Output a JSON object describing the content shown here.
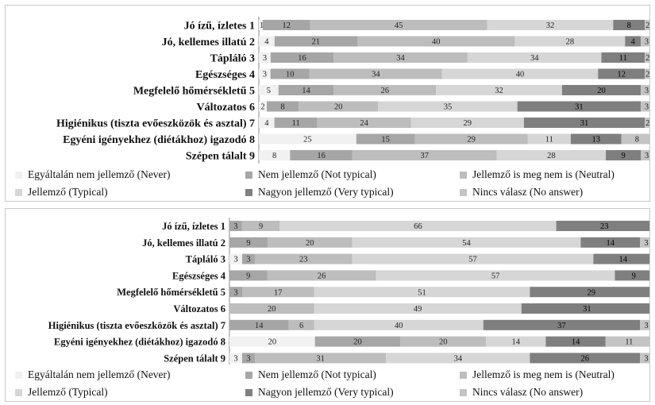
{
  "colors": {
    "never": "#f1f1f1",
    "not_typical": "#a6a6a6",
    "neutral": "#bdbdbd",
    "typical": "#d6d6d6",
    "very_typical": "#7f7f7f",
    "no_answer": "#c4c4c4",
    "panel_border": "#c8c8c8"
  },
  "chart_data": [
    {
      "type": "bar",
      "orientation": "horizontal",
      "stacked": true,
      "percent_stacked": true,
      "categories": [
        "Jó ízű, ízletes 1",
        "Jó, kellemes illatú 2",
        "Tápláló 3",
        "Egészséges 4",
        "Megfelelő hőmérsékletű 5",
        "Változatos 6",
        "Higiénikus (tiszta evőeszközök és asztal) 7",
        "Egyéni igényekhez (diétákhoz) igazodó 8",
        "Szépen tálalt 9"
      ],
      "series": [
        {
          "name": "Egyáltalán nem jellemző (Never)",
          "color_key": "never",
          "values": [
            1,
            4,
            3,
            3,
            5,
            2,
            4,
            25,
            8
          ]
        },
        {
          "name": "Nem jellemző (Not typical)",
          "color_key": "not_typical",
          "values": [
            12,
            21,
            16,
            10,
            14,
            8,
            11,
            15,
            16
          ]
        },
        {
          "name": "Jellemző is meg nem is (Neutral)",
          "color_key": "neutral",
          "values": [
            45,
            40,
            34,
            34,
            26,
            20,
            24,
            29,
            37
          ]
        },
        {
          "name": "Jellemző (Typical)",
          "color_key": "typical",
          "values": [
            32,
            28,
            34,
            40,
            32,
            35,
            29,
            11,
            28
          ]
        },
        {
          "name": "Nagyon jellemző (Very typical)",
          "color_key": "very_typical",
          "values": [
            8,
            4,
            11,
            12,
            20,
            31,
            31,
            13,
            9
          ]
        },
        {
          "name": "Nincs válasz (No answer)",
          "color_key": "no_answer",
          "values": [
            2,
            3,
            2,
            2,
            3,
            3,
            2,
            8,
            3
          ]
        }
      ],
      "legend": "bottom",
      "grid": false
    },
    {
      "type": "bar",
      "orientation": "horizontal",
      "stacked": true,
      "percent_stacked": true,
      "categories": [
        "Jó ízű, ízletes 1",
        "Jó, kellemes illatú 2",
        "Tápláló 3",
        "Egészséges 4",
        "Megfelelő hőmérsékletű 5",
        "Változatos 6",
        "Higiénikus (tiszta evőeszközök és asztal) 7",
        "Egyéni igényekhez (diétákhoz) igazodó 8",
        "Szépen tálalt 9"
      ],
      "series": [
        {
          "name": "Egyáltalán nem jellemző (Never)",
          "color_key": "never",
          "values": [
            0,
            0,
            3,
            0,
            0,
            0,
            0,
            20,
            3
          ]
        },
        {
          "name": "Nem jellemző (Not typical)",
          "color_key": "not_typical",
          "values": [
            3,
            9,
            3,
            9,
            3,
            0,
            14,
            20,
            3
          ]
        },
        {
          "name": "Jellemző is meg nem is (Neutral)",
          "color_key": "neutral",
          "values": [
            9,
            20,
            23,
            26,
            17,
            20,
            6,
            20,
            31
          ]
        },
        {
          "name": "Jellemző (Typical)",
          "color_key": "typical",
          "values": [
            66,
            54,
            57,
            57,
            51,
            49,
            40,
            14,
            34
          ]
        },
        {
          "name": "Nagyon jellemző (Very typical)",
          "color_key": "very_typical",
          "values": [
            23,
            14,
            14,
            9,
            29,
            31,
            37,
            14,
            26
          ]
        },
        {
          "name": "Nincs válasz (No answer)",
          "color_key": "no_answer",
          "values": [
            0,
            3,
            0,
            0,
            0,
            0,
            3,
            11,
            3
          ]
        }
      ],
      "legend": "bottom",
      "grid": false
    }
  ]
}
